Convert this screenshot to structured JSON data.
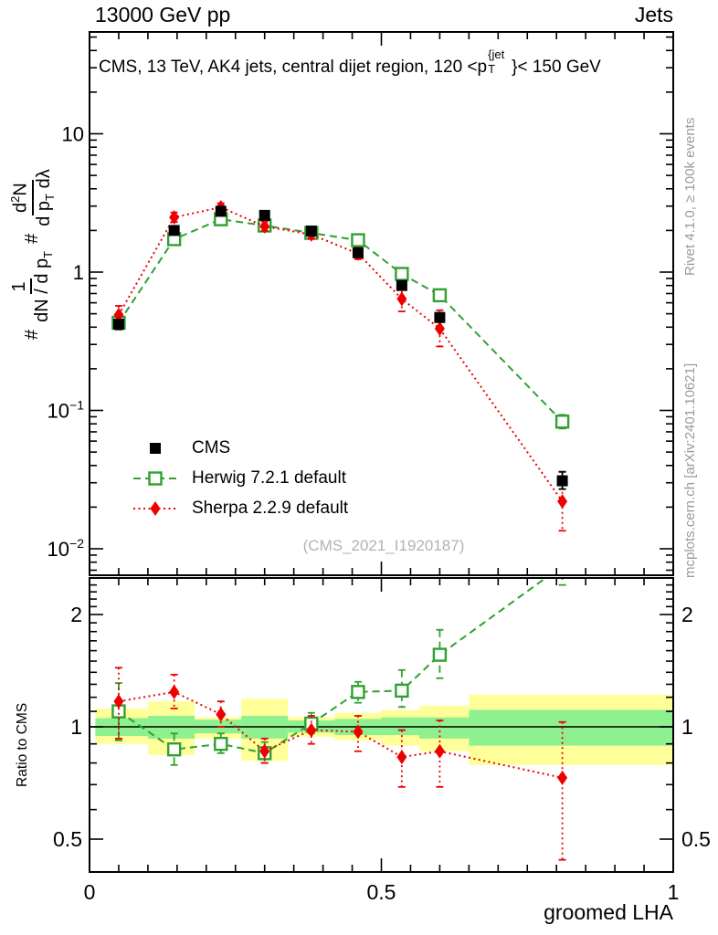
{
  "header": {
    "left": "13000 GeV pp",
    "right": "Jets"
  },
  "panel_title": {
    "a": "CMS, 13 TeV, AK4 jets, central dijet region, 120 <p",
    "sup": "{jet",
    "sub": "T",
    "b": "}< 150 GeV"
  },
  "ylabel": {
    "hash1": "#",
    "f1_num": "1",
    "f1_den_a": "dN / d p",
    "f1_den_sub": "T",
    "hash2": "#",
    "f2_num_a": "d",
    "f2_num_sup": "2",
    "f2_num_b": "N",
    "f2_den_a": "d p",
    "f2_den_sub": "T",
    "f2_den_b": " dλ"
  },
  "ratio_ylabel": "Ratio to CMS",
  "xlabel": "groomed LHA",
  "watermark": "(CMS_2021_I1920187)",
  "side_notes": {
    "top": "Rivet 4.1.0, ≥ 100k events",
    "bottom": "mcplots.cern.ch [arXiv:2401.10621]"
  },
  "legend": [
    {
      "label": "CMS",
      "marker": "square-filled",
      "color": "#000000",
      "line": "none"
    },
    {
      "label": "Herwig 7.2.1 default",
      "marker": "square-open",
      "color": "#30a030",
      "line": "dashed"
    },
    {
      "label": "Sherpa 2.2.9 default",
      "marker": "diamond-filled",
      "color": "#ee0000",
      "line": "dotted"
    }
  ],
  "colors": {
    "cms": "#000000",
    "herwig": "#30a030",
    "sherpa": "#ee0000",
    "band_yellow": "#ffff99",
    "band_green": "#8ef08e",
    "gray_text": "#9a9a9a",
    "watermark_gray": "#b2b2b2"
  },
  "chart_data": {
    "type": "line",
    "title": "CMS, 13 TeV, AK4 jets, central dijet region, 120 < pT(jet) < 150 GeV",
    "xlabel": "groomed LHA",
    "xlim": [
      0,
      1
    ],
    "xticks": [
      {
        "v": 0,
        "label": "0"
      },
      {
        "v": 0.5,
        "label": "0.5"
      },
      {
        "v": 1,
        "label": "1"
      }
    ],
    "x_minor_step": 0.05,
    "x": [
      0.05,
      0.145,
      0.225,
      0.3,
      0.38,
      0.46,
      0.535,
      0.6,
      0.81
    ],
    "main": {
      "yscale": "log",
      "ylim": [
        0.0064,
        54
      ],
      "yticks": [
        {
          "v": 10,
          "label": "10",
          "exp": ""
        },
        {
          "v": 1,
          "label": "1",
          "exp": ""
        },
        {
          "v": 0.1,
          "label": "10",
          "exp": "−1"
        },
        {
          "v": 0.01,
          "label": "10",
          "exp": "−2"
        }
      ],
      "series": [
        {
          "name": "CMS",
          "color": "#000000",
          "marker": "square-filled",
          "line": "none",
          "values": [
            0.42,
            2.0,
            2.75,
            2.57,
            1.98,
            1.38,
            0.8,
            0.47,
            0.031
          ],
          "err_lo": [
            0.385,
            1.9,
            2.6,
            2.45,
            1.89,
            1.31,
            0.75,
            0.435,
            0.027
          ],
          "err_hi": [
            0.45,
            2.1,
            2.9,
            2.7,
            2.08,
            1.46,
            0.86,
            0.505,
            0.036
          ]
        },
        {
          "name": "Herwig 7.2.1 default",
          "color": "#30a030",
          "marker": "square-open",
          "line": "dashed",
          "values": [
            0.43,
            1.73,
            2.41,
            2.17,
            1.92,
            1.7,
            0.97,
            0.68,
            0.083
          ],
          "err_lo": [
            0.39,
            1.62,
            2.3,
            2.07,
            1.84,
            1.62,
            0.9,
            0.62,
            0.074
          ],
          "err_hi": [
            0.475,
            1.85,
            2.52,
            2.28,
            2.0,
            1.79,
            1.05,
            0.75,
            0.093
          ]
        },
        {
          "name": "Sherpa 2.2.9 default",
          "color": "#ee0000",
          "marker": "diamond-filled",
          "line": "dotted",
          "values": [
            0.49,
            2.49,
            2.94,
            2.14,
            1.87,
            1.36,
            0.64,
            0.39,
            0.022
          ],
          "err_lo": [
            0.42,
            2.3,
            2.75,
            1.98,
            1.74,
            1.24,
            0.52,
            0.29,
            0.0135
          ],
          "err_hi": [
            0.57,
            2.7,
            3.15,
            2.32,
            2.0,
            1.5,
            0.79,
            0.53,
            0.036
          ]
        }
      ]
    },
    "ratio": {
      "yscale": "log",
      "ylim": [
        0.41,
        2.51
      ],
      "yticks": [
        {
          "v": 0.5,
          "label": "0.5"
        },
        {
          "v": 1,
          "label": "1"
        },
        {
          "v": 2,
          "label": "2"
        }
      ],
      "reference": 1,
      "series": [
        {
          "name": "Herwig 7.2.1 default",
          "color": "#30a030",
          "marker": "square-open",
          "line": "dashed",
          "values": [
            1.1,
            0.87,
            0.9,
            0.85,
            1.02,
            1.24,
            1.25,
            1.56,
            2.7
          ],
          "err_lo": [
            0.92,
            0.79,
            0.85,
            0.8,
            0.96,
            1.16,
            1.13,
            1.35,
            2.4
          ],
          "err_hi": [
            1.31,
            0.96,
            0.96,
            0.91,
            1.09,
            1.32,
            1.42,
            1.82,
            3.0
          ]
        },
        {
          "name": "Sherpa 2.2.9 default",
          "color": "#ee0000",
          "marker": "diamond-filled",
          "line": "dotted",
          "values": [
            1.17,
            1.24,
            1.08,
            0.86,
            0.98,
            0.97,
            0.83,
            0.86,
            0.73
          ],
          "err_lo": [
            0.93,
            1.12,
            1.0,
            0.8,
            0.9,
            0.86,
            0.69,
            0.69,
            0.44
          ],
          "err_hi": [
            1.44,
            1.38,
            1.17,
            0.93,
            1.07,
            1.07,
            0.98,
            1.04,
            1.03
          ]
        }
      ],
      "bands": [
        {
          "x0": 0.01,
          "x1": 0.1,
          "yellow": [
            0.9,
            1.12
          ],
          "green": [
            0.945,
            1.055
          ]
        },
        {
          "x0": 0.1,
          "x1": 0.18,
          "yellow": [
            0.84,
            1.17
          ],
          "green": [
            0.93,
            1.07
          ]
        },
        {
          "x0": 0.18,
          "x1": 0.26,
          "yellow": [
            0.93,
            1.06
          ],
          "green": [
            0.96,
            1.045
          ]
        },
        {
          "x0": 0.26,
          "x1": 0.34,
          "yellow": [
            0.81,
            1.19
          ],
          "green": [
            0.93,
            1.07
          ]
        },
        {
          "x0": 0.34,
          "x1": 0.42,
          "yellow": [
            0.94,
            1.06
          ],
          "green": [
            0.965,
            1.04
          ]
        },
        {
          "x0": 0.42,
          "x1": 0.5,
          "yellow": [
            0.92,
            1.09
          ],
          "green": [
            0.95,
            1.05
          ]
        },
        {
          "x0": 0.5,
          "x1": 0.565,
          "yellow": [
            0.89,
            1.11
          ],
          "green": [
            0.95,
            1.06
          ]
        },
        {
          "x0": 0.565,
          "x1": 0.65,
          "yellow": [
            0.86,
            1.14
          ],
          "green": [
            0.93,
            1.06
          ]
        },
        {
          "x0": 0.65,
          "x1": 1.0,
          "yellow": [
            0.79,
            1.22
          ],
          "green": [
            0.89,
            1.11
          ]
        }
      ]
    }
  }
}
